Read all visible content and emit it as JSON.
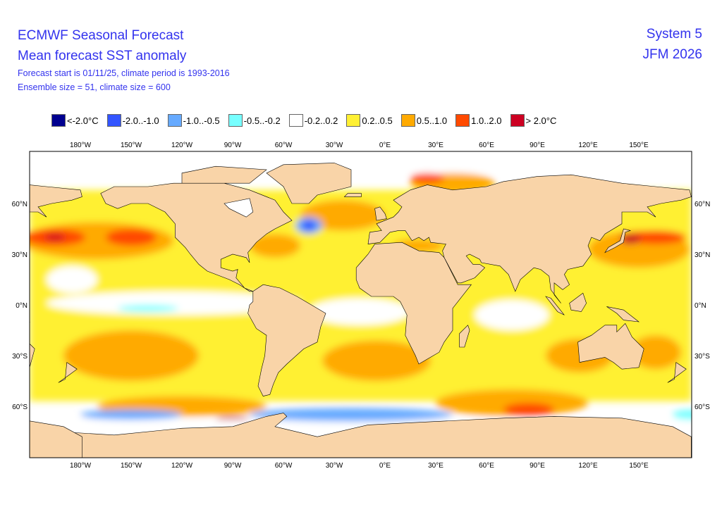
{
  "header": {
    "title": "ECMWF Seasonal Forecast",
    "subtitle": "Mean forecast SST anomaly",
    "line3": "Forecast start is 01/11/25, climate period is 1993-2016",
    "line4": "Ensemble size = 51, climate size = 600",
    "system": "System 5",
    "period": "JFM 2026"
  },
  "legend": [
    {
      "label": "<-2.0°C",
      "color": "#000090"
    },
    {
      "label": "-2.0..-1.0",
      "color": "#3355ff"
    },
    {
      "label": "-1.0..-0.5",
      "color": "#66aaff"
    },
    {
      "label": "-0.5..-0.2",
      "color": "#77ffff"
    },
    {
      "label": "-0.2..0.2",
      "color": "#ffffff"
    },
    {
      "label": "0.2..0.5",
      "color": "#fff033"
    },
    {
      "label": "0.5..1.0",
      "color": "#ffaa00"
    },
    {
      "label": "1.0..2.0",
      "color": "#ff4a00"
    },
    {
      "label": "> 2.0°C",
      "color": "#cc0022"
    }
  ],
  "map": {
    "land_color": "#f9d4a8",
    "lon_labels": [
      "180°W",
      "150°W",
      "120°W",
      "90°W",
      "60°W",
      "30°W",
      "0°E",
      "30°E",
      "60°E",
      "90°E",
      "120°E",
      "150°E"
    ],
    "lat_labels": [
      "60°N",
      "30°N",
      "0°N",
      "30°S",
      "60°S"
    ]
  }
}
